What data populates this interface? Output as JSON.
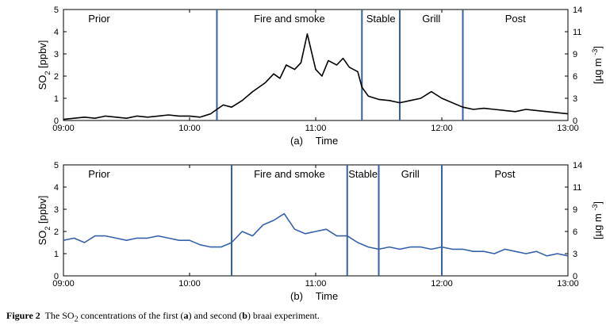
{
  "caption": {
    "label": "Figure 2",
    "pre": "The SO",
    "sub": "2",
    "mid1": " concentrations of the first (",
    "a": "a",
    "mid2": ") and second (",
    "b": "b",
    "post": ") braai experiment."
  },
  "chart_data": [
    {
      "type": "line",
      "panel": "(a)",
      "xlabel": "Time",
      "ylabel_left": "SO2 [ppbv]",
      "ylabel_right": "[µg m-3]",
      "xlim": [
        "09:00",
        "13:00"
      ],
      "xticks": [
        "09:00",
        "10:00",
        "11:00",
        "12:00",
        "13:00"
      ],
      "ylim": [
        0,
        5
      ],
      "yticks_left": [
        0,
        1,
        2,
        3,
        4,
        5
      ],
      "yticks_right": [
        0,
        3,
        6,
        9,
        11,
        14
      ],
      "line_color": "#000000",
      "divider_color": "#3561a8",
      "phases": [
        {
          "label": "Prior",
          "start": "09:00",
          "end": "10:13"
        },
        {
          "label": "Fire and smoke",
          "start": "10:13",
          "end": "11:22"
        },
        {
          "label": "Stable",
          "start": "11:22",
          "end": "11:40"
        },
        {
          "label": "Grill",
          "start": "11:40",
          "end": "12:10"
        },
        {
          "label": "Post",
          "start": "12:10",
          "end": "13:00"
        }
      ],
      "dividers": [
        "10:13",
        "11:22",
        "11:40",
        "12:10"
      ],
      "series": [
        {
          "x": [
            "09:00",
            "09:05",
            "09:10",
            "09:15",
            "09:20",
            "09:25",
            "09:30",
            "09:35",
            "09:40",
            "09:45",
            "09:50",
            "09:55",
            "10:00",
            "10:05",
            "10:10",
            "10:13",
            "10:16",
            "10:20",
            "10:25",
            "10:30",
            "10:33",
            "10:36",
            "10:40",
            "10:43",
            "10:46",
            "10:50",
            "10:53",
            "10:56",
            "11:00",
            "11:03",
            "11:06",
            "11:10",
            "11:13",
            "11:16",
            "11:20",
            "11:22",
            "11:25",
            "11:30",
            "11:35",
            "11:40",
            "11:45",
            "11:50",
            "11:55",
            "12:00",
            "12:05",
            "12:10",
            "12:15",
            "12:20",
            "12:25",
            "12:30",
            "12:35",
            "12:40",
            "12:45",
            "12:50",
            "12:55",
            "13:00"
          ],
          "y": [
            0.05,
            0.1,
            0.15,
            0.1,
            0.2,
            0.15,
            0.1,
            0.2,
            0.15,
            0.2,
            0.25,
            0.2,
            0.2,
            0.15,
            0.3,
            0.5,
            0.7,
            0.6,
            0.9,
            1.3,
            1.5,
            1.7,
            2.1,
            1.9,
            2.5,
            2.3,
            2.6,
            3.9,
            2.3,
            2.0,
            2.7,
            2.5,
            2.8,
            2.4,
            2.2,
            1.5,
            1.1,
            0.95,
            0.9,
            0.8,
            0.9,
            1.0,
            1.3,
            1.0,
            0.8,
            0.6,
            0.5,
            0.55,
            0.5,
            0.45,
            0.4,
            0.5,
            0.45,
            0.4,
            0.35,
            0.3
          ]
        }
      ]
    },
    {
      "type": "line",
      "panel": "(b)",
      "xlabel": "Time",
      "ylabel_left": "SO2 [ppbv]",
      "ylabel_right": "[µg m-3]",
      "xlim": [
        "09:00",
        "13:00"
      ],
      "xticks": [
        "09:00",
        "10:00",
        "11:00",
        "12:00",
        "13:00"
      ],
      "ylim": [
        0,
        5
      ],
      "yticks_left": [
        0,
        1,
        2,
        3,
        4,
        5
      ],
      "yticks_right": [
        0,
        3,
        6,
        9,
        11,
        14
      ],
      "line_color": "#3561a8",
      "divider_color": "#3561a8",
      "phases": [
        {
          "label": "Prior",
          "start": "09:00",
          "end": "10:20"
        },
        {
          "label": "Fire and smoke",
          "start": "10:20",
          "end": "11:15"
        },
        {
          "label": "Stable",
          "start": "11:15",
          "end": "11:30"
        },
        {
          "label": "Grill",
          "start": "11:30",
          "end": "12:00"
        },
        {
          "label": "Post",
          "start": "12:00",
          "end": "13:00"
        }
      ],
      "dividers": [
        "10:20",
        "11:15",
        "11:30",
        "12:00"
      ],
      "series": [
        {
          "x": [
            "09:00",
            "09:05",
            "09:10",
            "09:15",
            "09:20",
            "09:25",
            "09:30",
            "09:35",
            "09:40",
            "09:45",
            "09:50",
            "09:55",
            "10:00",
            "10:05",
            "10:10",
            "10:15",
            "10:20",
            "10:25",
            "10:30",
            "10:35",
            "10:40",
            "10:45",
            "10:50",
            "10:55",
            "11:00",
            "11:05",
            "11:10",
            "11:15",
            "11:20",
            "11:25",
            "11:30",
            "11:35",
            "11:40",
            "11:45",
            "11:50",
            "11:55",
            "12:00",
            "12:05",
            "12:10",
            "12:15",
            "12:20",
            "12:25",
            "12:30",
            "12:35",
            "12:40",
            "12:45",
            "12:50",
            "12:55",
            "13:00"
          ],
          "y": [
            1.6,
            1.7,
            1.5,
            1.8,
            1.8,
            1.7,
            1.6,
            1.7,
            1.7,
            1.8,
            1.7,
            1.6,
            1.6,
            1.4,
            1.3,
            1.3,
            1.5,
            2.0,
            1.8,
            2.3,
            2.5,
            2.8,
            2.1,
            1.9,
            2.0,
            2.1,
            1.8,
            1.8,
            1.5,
            1.3,
            1.2,
            1.3,
            1.2,
            1.3,
            1.3,
            1.2,
            1.3,
            1.2,
            1.2,
            1.1,
            1.1,
            1.0,
            1.2,
            1.1,
            1.0,
            1.1,
            0.9,
            1.0,
            0.9
          ]
        }
      ]
    }
  ]
}
